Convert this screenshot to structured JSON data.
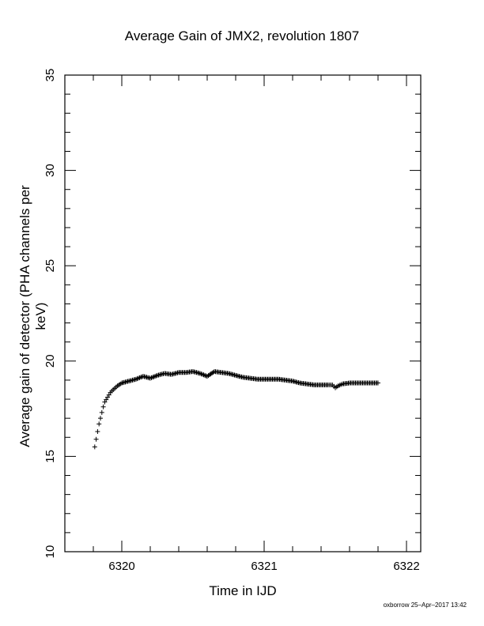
{
  "chart_data": {
    "type": "scatter",
    "title": "Average Gain of JMX2, revolution 1807",
    "xlabel": "Time in IJD",
    "ylabel": "Average gain of detector (PHA channels per keV)",
    "xlim": [
      6319.6,
      6322.1
    ],
    "ylim": [
      10,
      35
    ],
    "xticks": [
      6320,
      6321,
      6322
    ],
    "yticks": [
      10,
      15,
      20,
      25,
      30,
      35
    ],
    "marker": "plus",
    "grid": false,
    "series": [
      {
        "x": [
          6319.81,
          6319.82,
          6319.83,
          6319.84,
          6319.85,
          6319.86,
          6319.87,
          6319.88,
          6319.9,
          6319.92,
          6319.94,
          6319.97,
          6320.0,
          6320.05,
          6320.1,
          6320.15,
          6320.2,
          6320.25,
          6320.3,
          6320.35,
          6320.4,
          6320.45,
          6320.5,
          6320.55,
          6320.6,
          6320.65,
          6320.7,
          6320.75,
          6320.8,
          6320.85,
          6320.9,
          6320.95,
          6321.0,
          6321.05,
          6321.1,
          6321.15,
          6321.2,
          6321.25,
          6321.3,
          6321.35,
          6321.4,
          6321.45,
          6321.48,
          6321.5,
          6321.52,
          6321.55,
          6321.6,
          6321.65,
          6321.7,
          6321.75,
          6321.8
        ],
        "y": [
          15.5,
          15.9,
          16.3,
          16.7,
          17.0,
          17.3,
          17.6,
          17.85,
          18.1,
          18.35,
          18.5,
          18.7,
          18.85,
          18.95,
          19.05,
          19.2,
          19.1,
          19.25,
          19.35,
          19.3,
          19.4,
          19.4,
          19.45,
          19.35,
          19.2,
          19.45,
          19.4,
          19.35,
          19.25,
          19.15,
          19.1,
          19.05,
          19.05,
          19.05,
          19.05,
          19.0,
          18.95,
          18.85,
          18.8,
          18.75,
          18.75,
          18.75,
          18.75,
          18.6,
          18.7,
          18.8,
          18.85,
          18.85,
          18.85,
          18.85,
          18.85
        ]
      }
    ]
  },
  "footer": "oxborrow 25–Apr–2017 13:42"
}
